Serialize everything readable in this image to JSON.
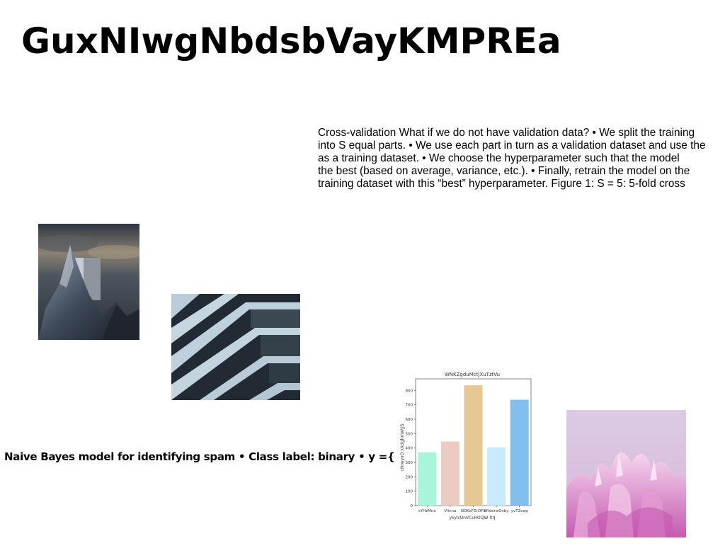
{
  "title": "GuxNIwgNbdsbVayKMPREa",
  "body_lines": [
    "Cross-validation What if we do not have validation data? • We split the training",
    "into S equal parts. • We use each part in turn as a validation dataset and use the",
    "as a training dataset. • We choose the hyperparameter such that the model",
    "the best (based on average, variance, etc.). • Finally, retrain the model on the",
    "training dataset with this “best” hyperparameter. Figure 1: S = 5: 5-fold cross"
  ],
  "subtitle": "Naive Bayes model for identifying spam • Class label: binary • y ={",
  "colors": {
    "bar_colors": [
      "#a8f5dc",
      "#ebccc2",
      "#e6c892",
      "#caeafb",
      "#82c0ec"
    ]
  },
  "chart_data": {
    "type": "bar",
    "title": "WNKZgduMctJXuTztVu",
    "xlabel": "ykylcUnVCcHOQW ltrJ",
    "ylabel": "cNrwyxO xXdghmWJJS",
    "categories": [
      "sYHzMnx",
      "Vlinna",
      "NDKcFZrDFX",
      "kRderwOvby",
      "yvTZvqq"
    ],
    "values": [
      370,
      445,
      835,
      405,
      735
    ],
    "ylim": [
      0,
      880
    ],
    "yticks": [
      0,
      100,
      200,
      300,
      400,
      500,
      600,
      700,
      800
    ],
    "grid": false
  }
}
